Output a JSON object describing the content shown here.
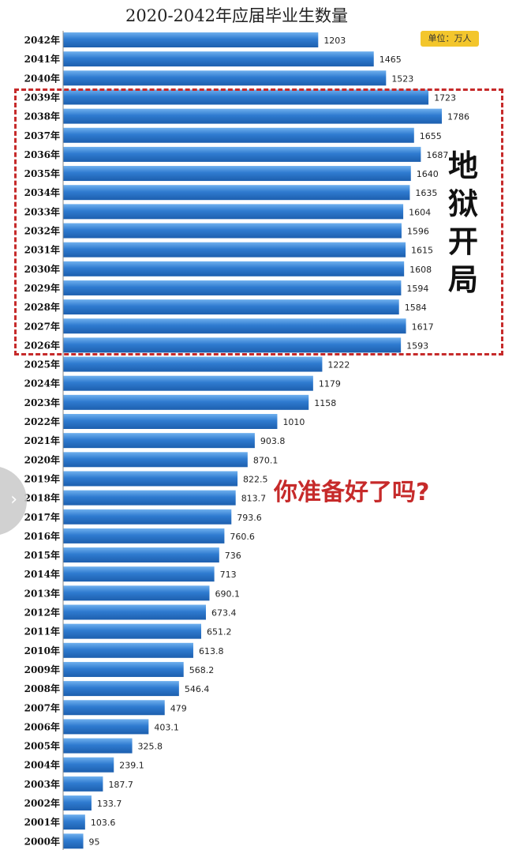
{
  "title": "2020-2042年应届毕业生数量",
  "unit_badge": "单位：万人",
  "annotation_hell": "地狱开局",
  "annotation_ready": "你准备好了吗?",
  "colors": {
    "bar": "#2f7bd0",
    "bar_light": "#6fb0ee",
    "frame": "#c62a2a",
    "badge": "#f3c62c"
  },
  "chart_data": {
    "type": "bar",
    "orientation": "horizontal",
    "title": "2020-2042年应届毕业生数量",
    "unit": "单位：万人",
    "grid": false,
    "categories": [
      "2042年",
      "2041年",
      "2040年",
      "2039年",
      "2038年",
      "2037年",
      "2036年",
      "2035年",
      "2034年",
      "2033年",
      "2032年",
      "2031年",
      "2030年",
      "2029年",
      "2028年",
      "2027年",
      "2026年",
      "2025年",
      "2024年",
      "2023年",
      "2022年",
      "2021年",
      "2020年",
      "2019年",
      "2018年",
      "2017年",
      "2016年",
      "2015年",
      "2014年",
      "2013年",
      "2012年",
      "2011年",
      "2010年",
      "2009年",
      "2008年",
      "2007年",
      "2006年",
      "2005年",
      "2004年",
      "2003年",
      "2002年",
      "2001年",
      "2000年"
    ],
    "values": [
      1203,
      1465,
      1523,
      1723,
      1786,
      1655,
      1687,
      1640,
      1635,
      1604,
      1596,
      1615,
      1608,
      1594,
      1584,
      1617,
      1593,
      1222,
      1179,
      1158,
      1010,
      903.8,
      870.1,
      822.5,
      813.7,
      793.6,
      760.6,
      736,
      713,
      690.1,
      673.4,
      651.2,
      613.8,
      568.2,
      546.4,
      479,
      403.1,
      325.8,
      239.1,
      187.7,
      133.7,
      103.6,
      95
    ],
    "value_labels": [
      "1203",
      "1465",
      "1523",
      "1723",
      "1786",
      "1655",
      "1687",
      "1640",
      "1635",
      "1604",
      "1596",
      "1615",
      "1608",
      "1594",
      "1584",
      "1617",
      "1593",
      "1222",
      "1179",
      "1158",
      "1010",
      "903.8",
      "870.1",
      "822.5",
      "813.7",
      "793.6",
      "760.6",
      "736",
      "713",
      "690.1",
      "673.4",
      "651.2",
      "613.8",
      "568.2",
      "546.4",
      "479",
      "403.1",
      "325.8",
      "239.1",
      "187.7",
      "133.7",
      "103.6",
      "95"
    ],
    "highlight_range": [
      "2039年",
      "2026年"
    ],
    "xlim": [
      0,
      1786
    ]
  }
}
